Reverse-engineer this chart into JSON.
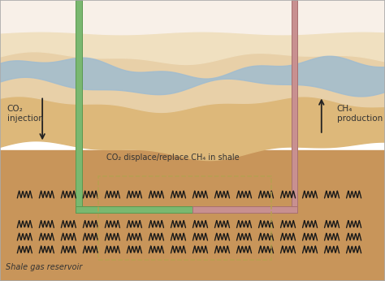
{
  "figsize": [
    4.74,
    3.46
  ],
  "dpi": 100,
  "bg_upper": "#f5ede0",
  "bg_mid": "#e8d0a8",
  "bg_lower_1": "#ddb87a",
  "bg_lower_2": "#c8955a",
  "water_color": "#a0bcd0",
  "green_pipe": "#7ab870",
  "green_pipe_edge": "#5a9850",
  "pink_pipe": "#c89090",
  "pink_pipe_edge": "#a87070",
  "dashed_color": "#b8a050",
  "arrow_color": "#222222",
  "text_color": "#333333",
  "border_color": "#aaaaaa",
  "co2_label": "CO₂\ninjection",
  "ch4_label": "CH₄\nproduction",
  "middle_label": "CO₂ displace/replace CH₄ in shale",
  "shale_label": "Shale gas reservoir"
}
